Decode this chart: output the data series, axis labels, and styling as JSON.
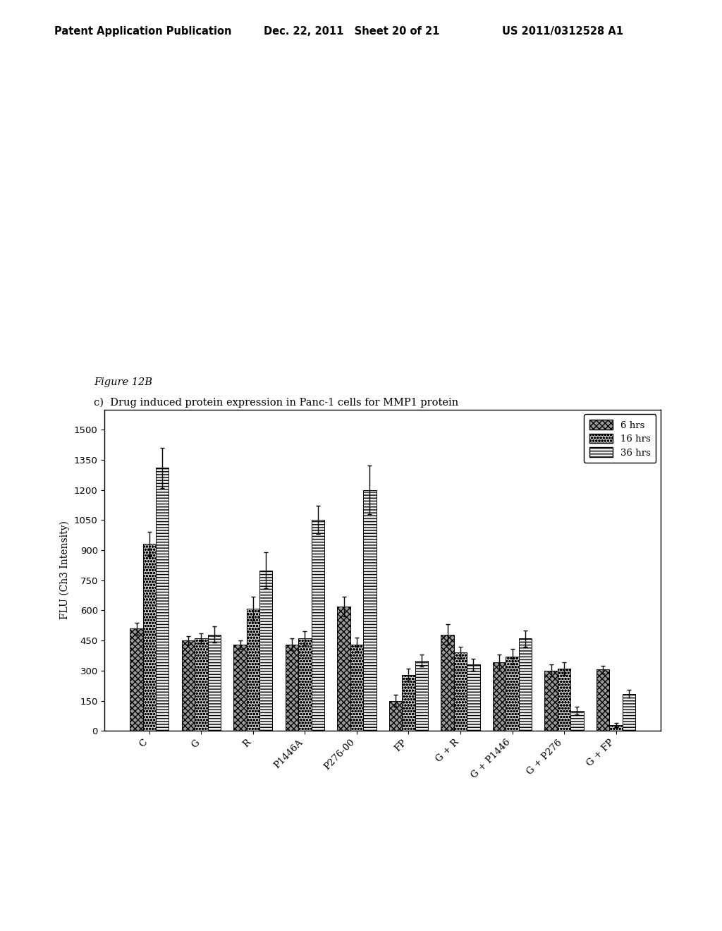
{
  "title_line1": "Figure 12B",
  "title_line2": "c)  Drug induced protein expression in Panc-1 cells for MMP1 protein",
  "header_left": "Patent Application Publication",
  "header_center": "Dec. 22, 2011   Sheet 20 of 21",
  "header_right": "US 2011/0312528 A1",
  "categories": [
    "C",
    "G",
    "R",
    "P1446A",
    "P276-00",
    "FP",
    "G + R",
    "G + P1446",
    "G + P276",
    "G + FP"
  ],
  "series_labels": [
    "6 hrs",
    "16 hrs",
    "36 hrs"
  ],
  "values_6hrs": [
    510,
    450,
    430,
    430,
    620,
    150,
    480,
    340,
    300,
    305
  ],
  "values_16hrs": [
    930,
    460,
    610,
    460,
    430,
    280,
    390,
    370,
    310,
    30
  ],
  "values_36hrs": [
    1310,
    480,
    800,
    1050,
    1200,
    350,
    330,
    460,
    100,
    185
  ],
  "errors_6hrs": [
    30,
    20,
    20,
    30,
    50,
    30,
    50,
    40,
    30,
    20
  ],
  "errors_16hrs": [
    60,
    25,
    60,
    35,
    35,
    30,
    30,
    40,
    30,
    10
  ],
  "errors_36hrs": [
    100,
    40,
    90,
    70,
    120,
    30,
    30,
    40,
    20,
    20
  ],
  "ylabel": "FLU (Ch3 Intensity)",
  "ylim": [
    0,
    1600
  ],
  "yticks": [
    0,
    150,
    300,
    450,
    600,
    750,
    900,
    1050,
    1200,
    1350,
    1500
  ],
  "bg_color": "#ffffff",
  "bar_width": 0.25
}
